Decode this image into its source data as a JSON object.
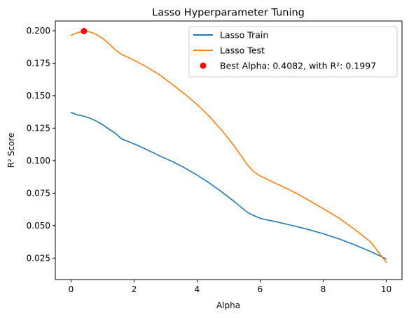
{
  "chart_data": {
    "type": "line",
    "title": "Lasso Hyperparameter Tuning",
    "xlabel": "Alpha",
    "ylabel": "R² Score",
    "xlim": [
      -0.5,
      10.5
    ],
    "ylim": [
      0.0085,
      0.2075
    ],
    "xticks": [
      0,
      2,
      4,
      6,
      8,
      10
    ],
    "xtick_labels": [
      "0",
      "2",
      "4",
      "6",
      "8",
      "10"
    ],
    "yticks": [
      0.025,
      0.05,
      0.075,
      0.1,
      0.125,
      0.15,
      0.175,
      0.2
    ],
    "ytick_labels": [
      "0.025",
      "0.050",
      "0.075",
      "0.100",
      "0.125",
      "0.150",
      "0.175",
      "0.200"
    ],
    "grid": false,
    "legend_position": "top-right",
    "series": [
      {
        "name": "Lasso Train",
        "color": "#1f77b4",
        "x": [
          0,
          0.2,
          0.4,
          0.6,
          0.8,
          1.0,
          1.2,
          1.4,
          1.6,
          2.0,
          2.4,
          2.8,
          3.2,
          3.6,
          4.0,
          4.4,
          4.8,
          5.2,
          5.6,
          5.8,
          6.0,
          6.2,
          6.6,
          7.0,
          7.5,
          8.0,
          8.5,
          9.0,
          9.5,
          10.0
        ],
        "y": [
          0.1372,
          0.1352,
          0.1343,
          0.1327,
          0.1305,
          0.1277,
          0.1243,
          0.1212,
          0.1168,
          0.1129,
          0.1085,
          0.1038,
          0.0995,
          0.0945,
          0.0889,
          0.0826,
          0.0756,
          0.0681,
          0.0601,
          0.0577,
          0.0557,
          0.0545,
          0.0525,
          0.0502,
          0.0472,
          0.0438,
          0.0398,
          0.0352,
          0.0301,
          0.0244
        ]
      },
      {
        "name": "Lasso Test",
        "color": "#ff7f0e",
        "x": [
          0,
          0.2,
          0.4,
          0.6,
          0.8,
          1.0,
          1.2,
          1.4,
          1.6,
          2.0,
          2.4,
          2.8,
          3.2,
          3.6,
          4.0,
          4.4,
          4.8,
          5.2,
          5.6,
          5.8,
          6.0,
          6.2,
          6.6,
          7.0,
          7.5,
          8.0,
          8.5,
          9.0,
          9.5,
          10.0
        ],
        "y": [
          0.1965,
          0.1985,
          0.1997,
          0.1991,
          0.1972,
          0.1942,
          0.1901,
          0.1853,
          0.1818,
          0.1773,
          0.1721,
          0.1662,
          0.1589,
          0.1514,
          0.1432,
          0.1337,
          0.1228,
          0.1106,
          0.0966,
          0.0914,
          0.0882,
          0.0859,
          0.0813,
          0.0767,
          0.0701,
          0.0631,
          0.0558,
          0.0471,
          0.0376,
          0.0218
        ]
      }
    ],
    "best_point": {
      "label": "Best Alpha: 0.4082, with R²: 0.1997",
      "x": 0.4082,
      "y": 0.1997,
      "color": "#ff0000"
    }
  }
}
